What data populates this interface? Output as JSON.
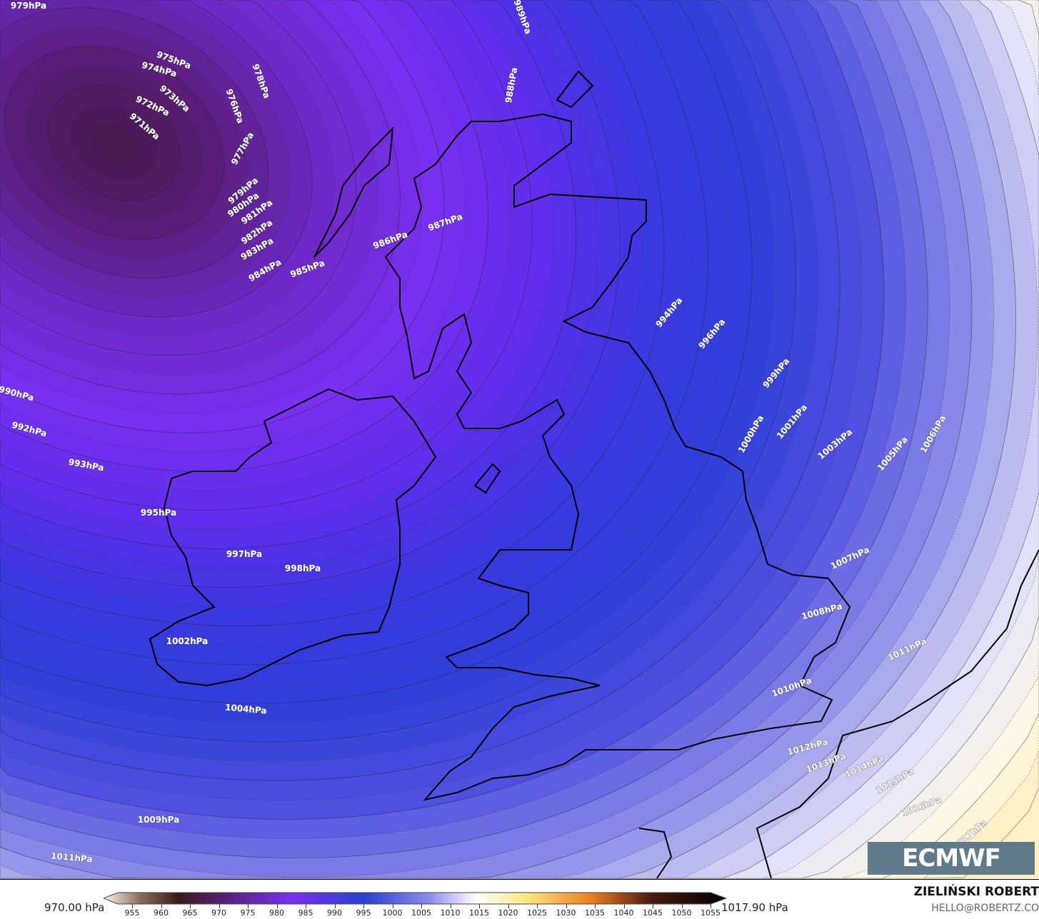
{
  "map": {
    "type": "mean sea level pressure",
    "isobar_labels": [
      "979hPa",
      "975hPa",
      "974hPa",
      "973hPa",
      "972hPa",
      "971hPa",
      "978hPa",
      "976hPa",
      "977hPa",
      "979hPa",
      "980hPa",
      "981hPa",
      "982hPa",
      "983hPa",
      "984hPa",
      "985hPa",
      "986hPa",
      "987hPa",
      "988hPa",
      "989hPa",
      "990hPa",
      "992hPa",
      "993hPa",
      "994hPa",
      "995hPa",
      "996hPa",
      "997hPa",
      "998hPa",
      "999hPa",
      "1000hPa",
      "1001hPa",
      "1002hPa",
      "1003hPa",
      "1004hPa",
      "1005hPa",
      "1006hPa",
      "1007hPa",
      "1008hPa",
      "1009hPa",
      "1010hPa",
      "1011hPa",
      "1011hPa",
      "1012hPa",
      "1013hPa",
      "1014hPa",
      "1015hPa",
      "1016hPa",
      "1017hPa"
    ],
    "colors": {
      "low_center": "#4a1848",
      "purple": "#7a30f0",
      "blue": "#3a3ae0",
      "light": "#c8c8f2",
      "high": "#fff8e6"
    }
  },
  "logo": {
    "text": "ECMWF"
  },
  "colorbar": {
    "min_label": "970.00 hPa",
    "max_label": "1017.90 hPa",
    "ticks": [
      "955",
      "960",
      "965",
      "970",
      "975",
      "980",
      "985",
      "990",
      "995",
      "1000",
      "1005",
      "1010",
      "1015",
      "1020",
      "1025",
      "1030",
      "1035",
      "1040",
      "1045",
      "1050",
      "1055"
    ]
  },
  "credit": {
    "author": "ZIELIŃSKI ROBERT",
    "email": "HELLO@ROBERTZ.CO"
  }
}
